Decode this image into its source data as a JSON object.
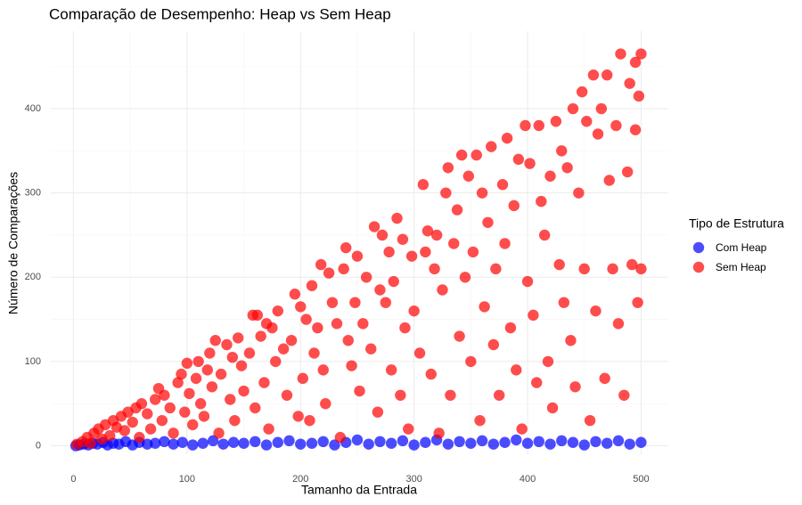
{
  "chart_data": {
    "type": "scatter",
    "title": "Comparação de Desempenho: Heap vs Sem Heap",
    "x_label": "Tamanho da Entrada",
    "y_label": "Número de Comparações",
    "legend_title": "Tipo de Estrutura",
    "legend_position": "right",
    "grid": true,
    "xlim": [
      -20,
      524
    ],
    "ylim": [
      -10,
      492
    ],
    "xticks": [
      0,
      100,
      200,
      300,
      400,
      500
    ],
    "yticks": [
      0,
      100,
      200,
      300,
      400
    ],
    "x_minor_ticks": [
      50,
      150,
      250,
      350,
      450
    ],
    "y_minor_ticks": [
      50,
      150,
      250,
      350,
      450
    ],
    "series": [
      {
        "name": "Com Heap",
        "color": "#0000ff",
        "x": [
          2,
          5,
          9,
          13,
          17,
          21,
          26,
          30,
          35,
          40,
          46,
          52,
          58,
          65,
          72,
          80,
          88,
          96,
          105,
          114,
          123,
          132,
          141,
          150,
          160,
          170,
          180,
          190,
          200,
          210,
          220,
          230,
          240,
          250,
          260,
          270,
          280,
          290,
          300,
          310,
          320,
          330,
          340,
          350,
          360,
          370,
          380,
          390,
          400,
          410,
          420,
          430,
          440,
          450,
          460,
          470,
          480,
          490,
          500
        ],
        "values": [
          0,
          1,
          2,
          1,
          3,
          2,
          4,
          1,
          3,
          2,
          5,
          1,
          4,
          2,
          3,
          5,
          2,
          4,
          1,
          3,
          6,
          2,
          4,
          3,
          5,
          1,
          4,
          6,
          2,
          3,
          5,
          1,
          4,
          7,
          2,
          5,
          3,
          6,
          1,
          4,
          7,
          2,
          5,
          3,
          6,
          2,
          4,
          7,
          3,
          5,
          2,
          6,
          4,
          1,
          5,
          3,
          6,
          2,
          4
        ]
      },
      {
        "name": "Sem Heap",
        "color": "#ff0000",
        "x": [
          3,
          8,
          12,
          15,
          18,
          22,
          25,
          28,
          32,
          35,
          38,
          42,
          45,
          48,
          52,
          55,
          58,
          60,
          65,
          68,
          72,
          75,
          78,
          80,
          85,
          88,
          92,
          95,
          98,
          100,
          102,
          105,
          108,
          110,
          112,
          115,
          118,
          120,
          122,
          125,
          128,
          130,
          135,
          138,
          140,
          142,
          145,
          148,
          150,
          155,
          158,
          160,
          162,
          165,
          168,
          170,
          172,
          175,
          178,
          180,
          185,
          188,
          192,
          195,
          198,
          200,
          202,
          205,
          208,
          210,
          212,
          215,
          218,
          220,
          222,
          225,
          228,
          232,
          235,
          238,
          240,
          242,
          245,
          248,
          250,
          252,
          255,
          258,
          262,
          265,
          268,
          270,
          272,
          275,
          278,
          280,
          282,
          285,
          288,
          290,
          292,
          295,
          298,
          300,
          305,
          308,
          310,
          312,
          315,
          318,
          320,
          322,
          325,
          328,
          330,
          332,
          335,
          338,
          340,
          342,
          345,
          348,
          350,
          352,
          355,
          358,
          360,
          362,
          365,
          368,
          370,
          372,
          375,
          378,
          380,
          382,
          385,
          388,
          390,
          392,
          395,
          398,
          400,
          402,
          405,
          408,
          410,
          412,
          415,
          418,
          420,
          422,
          425,
          428,
          430,
          432,
          435,
          438,
          440,
          442,
          445,
          448,
          450,
          452,
          455,
          458,
          460,
          462,
          465,
          468,
          470,
          472,
          475,
          478,
          480,
          482,
          485,
          488,
          490,
          492,
          495,
          497,
          498,
          500,
          500,
          495
        ],
        "values": [
          2,
          5,
          10,
          3,
          15,
          20,
          8,
          25,
          12,
          30,
          22,
          35,
          18,
          40,
          28,
          45,
          10,
          50,
          38,
          20,
          55,
          68,
          30,
          60,
          45,
          15,
          75,
          85,
          40,
          98,
          62,
          25,
          80,
          100,
          50,
          35,
          90,
          110,
          70,
          125,
          15,
          85,
          120,
          55,
          105,
          30,
          128,
          95,
          65,
          110,
          155,
          45,
          155,
          130,
          75,
          145,
          20,
          140,
          100,
          160,
          115,
          60,
          125,
          180,
          35,
          165,
          80,
          150,
          30,
          190,
          110,
          140,
          215,
          90,
          50,
          205,
          170,
          145,
          10,
          210,
          235,
          125,
          95,
          170,
          225,
          65,
          145,
          200,
          115,
          260,
          40,
          185,
          250,
          170,
          230,
          90,
          195,
          270,
          60,
          245,
          140,
          20,
          225,
          160,
          110,
          310,
          230,
          255,
          85,
          210,
          250,
          15,
          185,
          300,
          330,
          60,
          240,
          280,
          130,
          345,
          200,
          320,
          100,
          230,
          345,
          30,
          300,
          165,
          265,
          355,
          120,
          210,
          60,
          310,
          240,
          365,
          140,
          285,
          90,
          340,
          20,
          380,
          195,
          335,
          155,
          75,
          380,
          290,
          250,
          100,
          320,
          45,
          385,
          215,
          350,
          170,
          330,
          125,
          400,
          70,
          300,
          420,
          210,
          385,
          30,
          440,
          160,
          370,
          400,
          80,
          440,
          315,
          210,
          380,
          145,
          465,
          60,
          325,
          430,
          215,
          375,
          170,
          415,
          465,
          210,
          455
        ]
      }
    ]
  }
}
